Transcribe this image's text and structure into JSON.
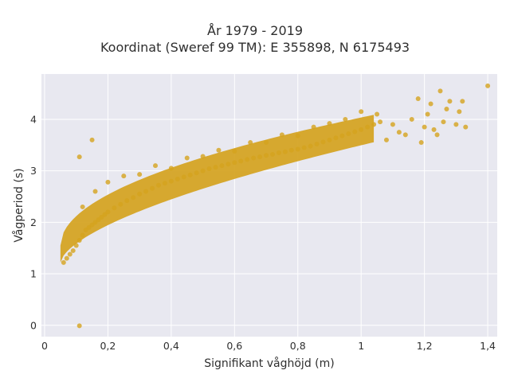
{
  "chart_data": {
    "type": "scatter",
    "title": "År 1979 - 2019",
    "subtitle": "Koordinat (Sweref 99 TM): E 355898, N 6175493",
    "xlabel": "Signifikant våghöjd (m)",
    "ylabel": "Vågperiod (s)",
    "xlim": [
      -0.01,
      1.43
    ],
    "ylim": [
      -0.22,
      4.88
    ],
    "x_ticks": [
      "0",
      "0,2",
      "0,4",
      "0,6",
      "0,8",
      "1",
      "1,2",
      "1,4"
    ],
    "x_tick_values": [
      0,
      0.2,
      0.4,
      0.6,
      0.8,
      1.0,
      1.2,
      1.4
    ],
    "y_ticks": [
      "0",
      "1",
      "2",
      "3",
      "4"
    ],
    "y_tick_values": [
      0,
      1,
      2,
      3,
      4
    ],
    "grid": true,
    "legend": "none",
    "marker_color": "#d4a21e",
    "background_color": "#e8e8f0",
    "series": [
      {
        "x": [
          0.06,
          0.07,
          0.08,
          0.09,
          0.1,
          0.11,
          0.12,
          0.13,
          0.14,
          0.15,
          0.16,
          0.17,
          0.18,
          0.19,
          0.2,
          0.22,
          0.24,
          0.26,
          0.28,
          0.3,
          0.32,
          0.34,
          0.36,
          0.38,
          0.4,
          0.42,
          0.44,
          0.46,
          0.48,
          0.5,
          0.52,
          0.54,
          0.56,
          0.58,
          0.6,
          0.62,
          0.64,
          0.66,
          0.68,
          0.7,
          0.72,
          0.74,
          0.76,
          0.78,
          0.8,
          0.82,
          0.84,
          0.86,
          0.88,
          0.9,
          0.92,
          0.94,
          0.96,
          0.98,
          1.0,
          1.02,
          1.04,
          1.06,
          0.12,
          0.16,
          0.25,
          0.35,
          0.45,
          0.55,
          0.65,
          0.75,
          0.85,
          0.95,
          1.05,
          1.08,
          1.1,
          1.12,
          1.14,
          1.16,
          1.18,
          1.19,
          1.2,
          1.21,
          1.22,
          1.23,
          1.24,
          1.25,
          1.26,
          1.27,
          1.28,
          1.3,
          1.31,
          1.32,
          1.33,
          1.4,
          0.11,
          0.11,
          0.15,
          0.2,
          0.3,
          0.4,
          0.5,
          0.6,
          0.7,
          0.8,
          0.9,
          1.0
        ],
        "y": [
          1.22,
          1.3,
          1.38,
          1.45,
          1.55,
          1.65,
          1.75,
          1.85,
          1.9,
          1.95,
          2.0,
          2.05,
          2.1,
          2.15,
          2.2,
          2.28,
          2.35,
          2.42,
          2.48,
          2.55,
          2.6,
          2.66,
          2.72,
          2.76,
          2.8,
          2.84,
          2.88,
          2.92,
          2.96,
          3.0,
          3.04,
          3.07,
          3.1,
          3.13,
          3.16,
          3.19,
          3.22,
          3.25,
          3.27,
          3.3,
          3.32,
          3.35,
          3.37,
          3.4,
          3.42,
          3.45,
          3.48,
          3.52,
          3.56,
          3.6,
          3.64,
          3.68,
          3.72,
          3.76,
          3.8,
          3.85,
          3.9,
          3.95,
          2.3,
          2.6,
          2.9,
          3.1,
          3.25,
          3.4,
          3.55,
          3.7,
          3.85,
          4.0,
          4.1,
          3.6,
          3.9,
          3.75,
          3.7,
          4.0,
          4.4,
          3.55,
          3.85,
          4.1,
          4.3,
          3.8,
          3.7,
          4.55,
          3.95,
          4.2,
          4.35,
          3.9,
          4.15,
          4.35,
          3.85,
          4.65,
          3.27,
          -0.01,
          3.6,
          2.78,
          2.93,
          3.05,
          3.28,
          3.38,
          3.55,
          3.68,
          3.92,
          4.15
        ]
      }
    ]
  }
}
